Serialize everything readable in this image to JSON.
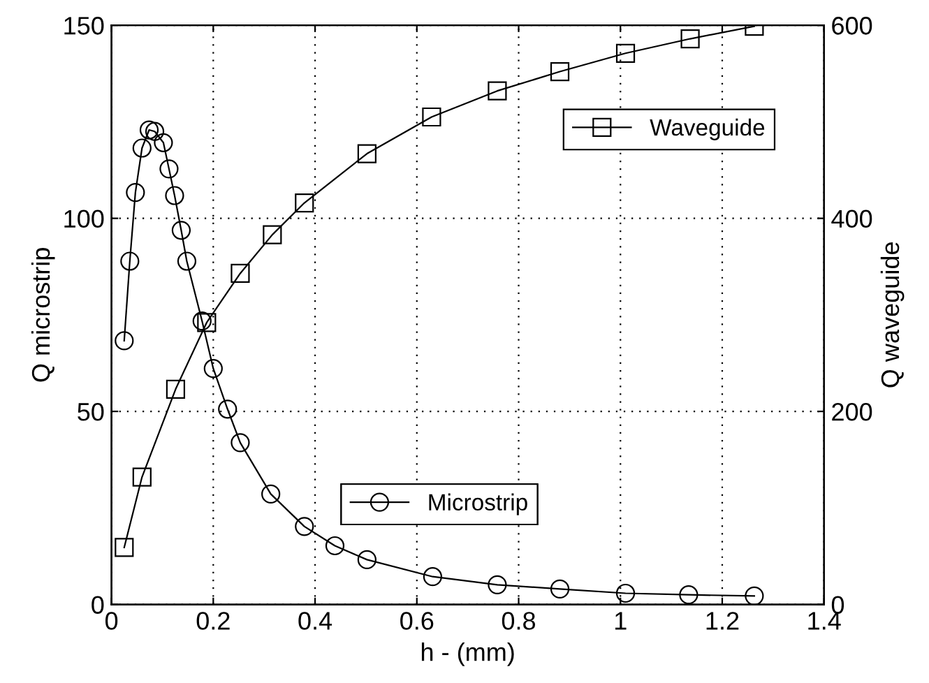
{
  "chart_data": {
    "type": "line",
    "xlabel": "h - (mm)",
    "ylabel": "Q microstrip",
    "y2label": "Q waveguide",
    "xlim": [
      0,
      1.4
    ],
    "xticks": [
      0,
      0.2,
      0.4,
      0.6,
      0.8,
      1,
      1.2,
      1.4
    ],
    "ylim": [
      0,
      150
    ],
    "yticks": [
      0,
      50,
      100,
      150
    ],
    "y2lim": [
      0,
      600
    ],
    "y2ticks": [
      0,
      200,
      400,
      600
    ],
    "grid": true,
    "line_style": "solid",
    "legend": "right",
    "series": [
      {
        "name": "Microstrip",
        "color": "#000000",
        "marker": "circle",
        "x": [
          0.025,
          0.036,
          0.047,
          0.06,
          0.074,
          0.085,
          0.102,
          0.113,
          0.124,
          0.137,
          0.148,
          0.178,
          0.2,
          0.228,
          0.253,
          0.313,
          0.379,
          0.439,
          0.502,
          0.631,
          0.758,
          0.881,
          1.01,
          1.134,
          1.263
        ],
        "values": [
          68.3,
          88.9,
          106.7,
          118.2,
          122.9,
          122.5,
          119.6,
          112.8,
          105.9,
          96.9,
          88.9,
          73.4,
          61.1,
          50.6,
          41.9,
          28.6,
          20.2,
          15.2,
          11.6,
          7.2,
          5.1,
          4.0,
          2.9,
          2.5,
          2.2
        ]
      },
      {
        "name": "Waveguide",
        "color": "#000000",
        "marker": "square",
        "axis": "y2",
        "x": [
          0.025,
          0.06,
          0.126,
          0.187,
          0.253,
          0.316,
          0.379,
          0.502,
          0.629,
          0.758,
          0.881,
          1.01,
          1.137,
          1.263
        ],
        "values": [
          59,
          132,
          223,
          292,
          343,
          383,
          416,
          467,
          505,
          532,
          552,
          571,
          586,
          599
        ]
      }
    ]
  }
}
